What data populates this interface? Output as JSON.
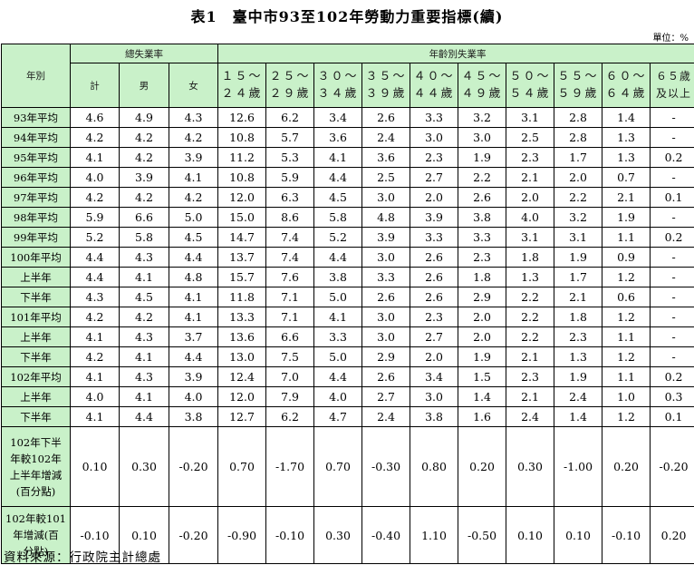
{
  "title": "表1　臺中市93至102年勞動力重要指標(續)",
  "unit": "單位：%",
  "header": {
    "year_col": "年別",
    "group_total": "總失業率",
    "group_age": "年齡別失業率",
    "sub_total": [
      "計",
      "男",
      "女"
    ],
    "age_groups": [
      {
        "line1": "１５～",
        "line2": "２４歲"
      },
      {
        "line1": "２５～",
        "line2": "２９歲"
      },
      {
        "line1": "３０～",
        "line2": "３４歲"
      },
      {
        "line1": "３５～",
        "line2": "３９歲"
      },
      {
        "line1": "４０～",
        "line2": "４４歲"
      },
      {
        "line1": "４５～",
        "line2": "４９歲"
      },
      {
        "line1": "５０～",
        "line2": "５４歲"
      },
      {
        "line1": "５５～",
        "line2": "５９歲"
      },
      {
        "line1": "６０～",
        "line2": "６４歲"
      },
      {
        "line1": "６５歲",
        "line2": "及以上"
      }
    ]
  },
  "rows": [
    {
      "label": "93年平均",
      "values": [
        "4.6",
        "4.9",
        "4.3",
        "12.6",
        "6.2",
        "3.4",
        "2.6",
        "3.3",
        "3.2",
        "3.1",
        "2.8",
        "1.4",
        "-"
      ]
    },
    {
      "label": "94年平均",
      "values": [
        "4.2",
        "4.2",
        "4.2",
        "10.8",
        "5.7",
        "3.6",
        "2.4",
        "3.0",
        "3.0",
        "2.5",
        "2.8",
        "1.3",
        "-"
      ]
    },
    {
      "label": "95年平均",
      "values": [
        "4.1",
        "4.2",
        "3.9",
        "11.2",
        "5.3",
        "4.1",
        "3.6",
        "2.3",
        "1.9",
        "2.3",
        "1.7",
        "1.3",
        "0.2"
      ]
    },
    {
      "label": "96年平均",
      "values": [
        "4.0",
        "3.9",
        "4.1",
        "10.8",
        "5.9",
        "4.4",
        "2.5",
        "2.7",
        "2.2",
        "2.1",
        "2.0",
        "0.7",
        "-"
      ]
    },
    {
      "label": "97年平均",
      "values": [
        "4.2",
        "4.2",
        "4.2",
        "12.0",
        "6.3",
        "4.5",
        "3.0",
        "2.0",
        "2.6",
        "2.0",
        "2.2",
        "2.1",
        "0.1"
      ]
    },
    {
      "label": "98年平均",
      "values": [
        "5.9",
        "6.6",
        "5.0",
        "15.0",
        "8.6",
        "5.8",
        "4.8",
        "3.9",
        "3.8",
        "4.0",
        "3.2",
        "1.9",
        "-"
      ]
    },
    {
      "label": "99年平均",
      "values": [
        "5.2",
        "5.8",
        "4.5",
        "14.7",
        "7.4",
        "5.2",
        "3.9",
        "3.3",
        "3.3",
        "3.1",
        "3.1",
        "1.1",
        "0.2"
      ]
    },
    {
      "label": "100年平均",
      "values": [
        "4.4",
        "4.3",
        "4.4",
        "13.7",
        "7.4",
        "4.4",
        "3.0",
        "2.6",
        "2.3",
        "1.8",
        "1.9",
        "0.9",
        "-"
      ]
    },
    {
      "label": "上半年",
      "values": [
        "4.4",
        "4.1",
        "4.8",
        "15.7",
        "7.6",
        "3.8",
        "3.3",
        "2.6",
        "1.8",
        "1.3",
        "1.7",
        "1.2",
        "-"
      ]
    },
    {
      "label": "下半年",
      "values": [
        "4.3",
        "4.5",
        "4.1",
        "11.8",
        "7.1",
        "5.0",
        "2.6",
        "2.6",
        "2.9",
        "2.2",
        "2.1",
        "0.6",
        "-"
      ]
    },
    {
      "label": "101年平均",
      "values": [
        "4.2",
        "4.2",
        "4.1",
        "13.3",
        "7.1",
        "4.1",
        "3.0",
        "2.3",
        "2.0",
        "2.2",
        "1.8",
        "1.2",
        "-"
      ]
    },
    {
      "label": "上半年",
      "values": [
        "4.1",
        "4.3",
        "3.7",
        "13.6",
        "6.6",
        "3.3",
        "3.0",
        "2.7",
        "2.0",
        "2.2",
        "2.3",
        "1.1",
        "-"
      ]
    },
    {
      "label": "下半年",
      "values": [
        "4.2",
        "4.1",
        "4.4",
        "13.0",
        "7.5",
        "5.0",
        "2.9",
        "2.0",
        "1.9",
        "2.1",
        "1.3",
        "1.2",
        "-"
      ]
    },
    {
      "label": "102年平均",
      "values": [
        "4.1",
        "4.3",
        "3.9",
        "12.4",
        "7.0",
        "4.4",
        "2.6",
        "3.4",
        "1.5",
        "2.3",
        "1.9",
        "1.1",
        "0.2"
      ]
    },
    {
      "label": "上半年",
      "values": [
        "4.0",
        "4.1",
        "4.0",
        "12.0",
        "7.9",
        "4.0",
        "2.7",
        "3.0",
        "1.4",
        "2.1",
        "2.4",
        "1.0",
        "0.3"
      ]
    },
    {
      "label": "下半年",
      "values": [
        "4.1",
        "4.4",
        "3.8",
        "12.7",
        "6.2",
        "4.7",
        "2.4",
        "3.8",
        "1.6",
        "2.4",
        "1.4",
        "1.2",
        "0.1"
      ]
    }
  ],
  "change_rows": [
    {
      "label_lines": [
        "102年下半",
        "年較102年",
        "上半年增減",
        "(百分點)"
      ],
      "values": [
        "0.10",
        "0.30",
        "-0.20",
        "0.70",
        "-1.70",
        "0.70",
        "-0.30",
        "0.80",
        "0.20",
        "0.30",
        "-1.00",
        "0.20",
        "-0.20"
      ]
    },
    {
      "label_lines": [
        "102年較101",
        "年增減(百",
        "分點)"
      ],
      "values": [
        "-0.10",
        "0.10",
        "-0.20",
        "-0.90",
        "-0.10",
        "0.30",
        "-0.40",
        "1.10",
        "-0.50",
        "0.10",
        "0.10",
        "-0.10",
        "0.20"
      ]
    }
  ],
  "source": "資料來源：行政院主計總處"
}
